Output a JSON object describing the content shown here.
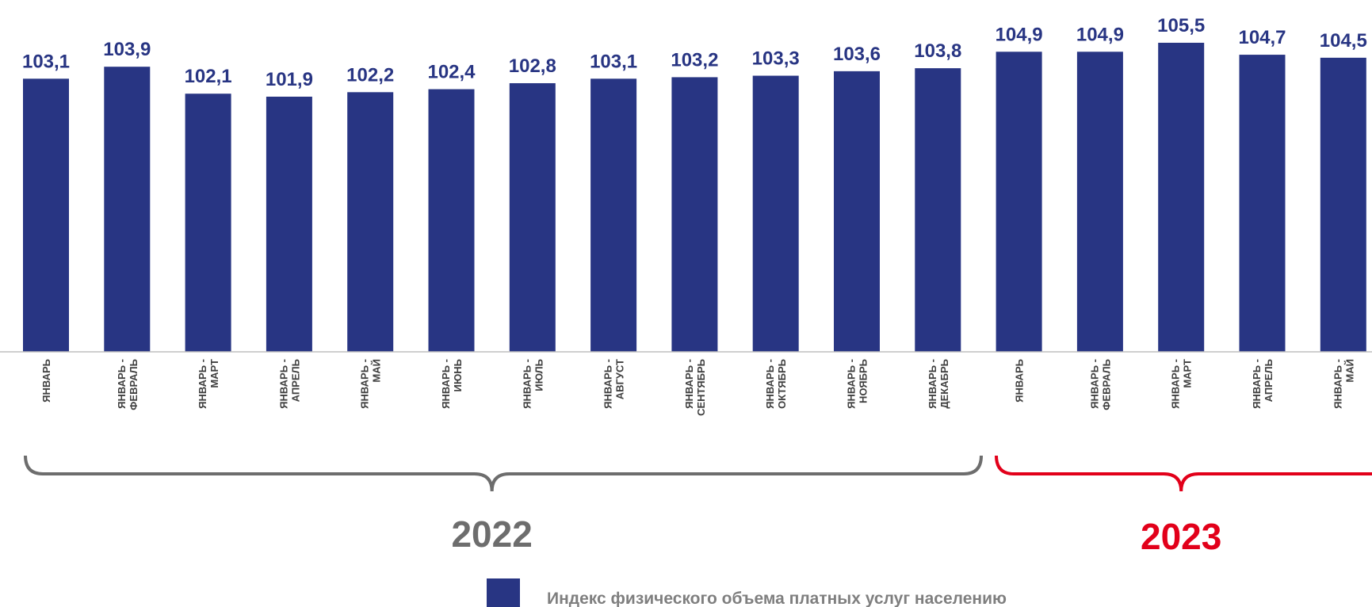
{
  "colors": {
    "bar": "#283583",
    "value_label": "#283583",
    "axis": "#bfbfbf",
    "category_text": "#404040",
    "year_2022": "#6d6d6d",
    "year_2023": "#e2001a",
    "legend_text": "#7f7f7f"
  },
  "chart_data": {
    "type": "bar",
    "categories": [
      [
        "ЯНВАРЬ"
      ],
      [
        "ЯНВАРЬ -",
        "ФЕВРАЛЬ"
      ],
      [
        "ЯНВАРЬ -",
        "МАРТ"
      ],
      [
        "ЯНВАРЬ -",
        "АПРЕЛЬ"
      ],
      [
        "ЯНВАРЬ -",
        "МАЙ"
      ],
      [
        "ЯНВАРЬ -",
        "ИЮНЬ"
      ],
      [
        "ЯНВАРЬ -",
        "ИЮЛЬ"
      ],
      [
        "ЯНВАРЬ -",
        "АВГУСТ"
      ],
      [
        "ЯНВАРЬ -",
        "СЕНТЯБРЬ"
      ],
      [
        "ЯНВАРЬ -",
        "ОКТЯБРЬ"
      ],
      [
        "ЯНВАРЬ -",
        "НОЯБРЬ"
      ],
      [
        "ЯНВАРЬ -",
        "ДЕКАБРЬ"
      ],
      [
        "ЯНВАРЬ"
      ],
      [
        "ЯНВАРЬ -",
        "ФЕВРАЛЬ"
      ],
      [
        "ЯНВАРЬ -",
        "МАРТ"
      ],
      [
        "ЯНВАРЬ -",
        "АПРЕЛЬ"
      ],
      [
        "ЯНВАРЬ -",
        "МАЙ"
      ]
    ],
    "values": [
      103.1,
      103.9,
      102.1,
      101.9,
      102.2,
      102.4,
      102.8,
      103.1,
      103.2,
      103.3,
      103.6,
      103.8,
      104.9,
      104.9,
      105.5,
      104.7,
      104.5
    ],
    "value_labels": [
      "103,1",
      "103,9",
      "102,1",
      "101,9",
      "102,2",
      "102,4",
      "102,8",
      "103,1",
      "103,2",
      "103,3",
      "103,6",
      "103,8",
      "104,9",
      "104,9",
      "105,5",
      "104,7",
      "104,5"
    ],
    "groups": [
      {
        "label": "2022",
        "start": 0,
        "end": 11,
        "color_key": "year_2022"
      },
      {
        "label": "2023",
        "start": 12,
        "end": 16,
        "color_key": "year_2023"
      }
    ],
    "legend": {
      "label": "Индекс физического объема платных услуг населению",
      "position": "bottom"
    },
    "grid": false,
    "title": "",
    "xlabel": "",
    "ylabel": ""
  }
}
